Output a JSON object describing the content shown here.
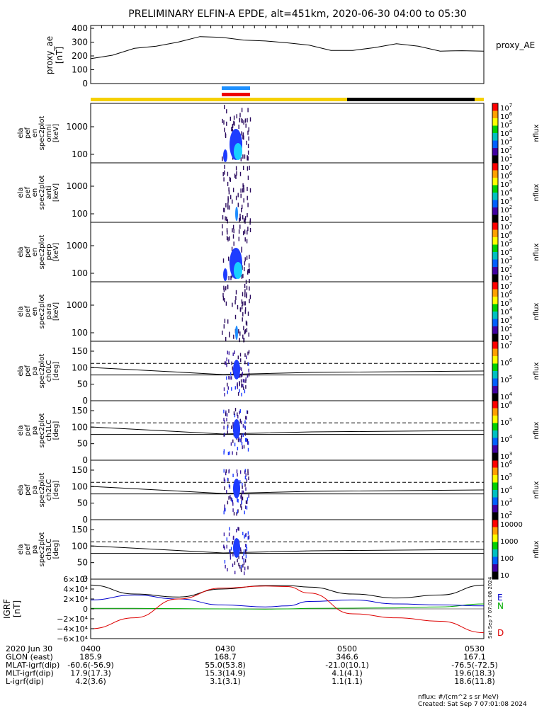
{
  "title": "PRELIMINARY ELFIN-A EPDE, alt=451km, 2020-06-30 04:00 to 05:30",
  "chart_data": [
    {
      "id": "ae",
      "type": "line",
      "ylabel": [
        "proxy_ae",
        "[nT]"
      ],
      "legend": "proxy_AE",
      "yticks": [
        "400",
        "300",
        "200",
        "100",
        "0"
      ],
      "ylim": [
        0,
        400
      ],
      "xlim_min": [
        0,
        90
      ],
      "x": [
        0,
        5,
        10,
        15,
        20,
        25,
        30,
        35,
        40,
        45,
        50,
        55,
        60,
        65,
        70,
        75,
        80,
        85,
        90
      ],
      "values": [
        180,
        205,
        255,
        270,
        300,
        340,
        335,
        315,
        308,
        295,
        278,
        240,
        240,
        260,
        288,
        270,
        235,
        238,
        235
      ]
    },
    {
      "id": "spec_omni",
      "type": "heatmap",
      "ylabel": [
        "ela",
        "pef",
        "en",
        "spec2plot",
        "omni",
        "[keV]"
      ],
      "yticks": [
        "1000",
        "100"
      ],
      "cbar": {
        "label": "nflux",
        "ticks": [
          "10^7",
          "10^6",
          "10^5",
          "10^4",
          "10^3",
          "10^2",
          "10^1"
        ]
      }
    },
    {
      "id": "spec_anti",
      "type": "heatmap",
      "ylabel": [
        "ela",
        "pef",
        "en",
        "spec2plot",
        "anti",
        "[keV]"
      ],
      "yticks": [
        "1000",
        "100"
      ],
      "cbar": {
        "label": "nflux",
        "ticks": [
          "10^7",
          "10^6",
          "10^5",
          "10^4",
          "10^3",
          "10^2",
          "10^1"
        ]
      }
    },
    {
      "id": "spec_perp",
      "type": "heatmap",
      "ylabel": [
        "ela",
        "pef",
        "en",
        "spec2plot",
        "perp",
        "[keV]"
      ],
      "yticks": [
        "1000",
        "100"
      ],
      "cbar": {
        "label": "nflux",
        "ticks": [
          "10^7",
          "10^6",
          "10^5",
          "10^4",
          "10^3",
          "10^2",
          "10^1"
        ]
      }
    },
    {
      "id": "spec_para",
      "type": "heatmap",
      "ylabel": [
        "ela",
        "pef",
        "en",
        "spec2plot",
        "para",
        "[keV]"
      ],
      "yticks": [
        "1000",
        "100"
      ],
      "cbar": {
        "label": "nflux",
        "ticks": [
          "10^7",
          "10^6",
          "10^5",
          "10^4",
          "10^3",
          "10^2",
          "10^1"
        ]
      }
    },
    {
      "id": "pa_ch0",
      "type": "heatmap",
      "ylabel": [
        "ela",
        "pef",
        "pa",
        "spec2plot",
        "ch0LC",
        "[deg]"
      ],
      "yticks": [
        "150",
        "100",
        "50",
        "0"
      ],
      "ylim": [
        0,
        180
      ],
      "cbar": {
        "label": "nflux",
        "ticks": [
          "10^7",
          "10^6",
          "10^5",
          "10^4"
        ]
      }
    },
    {
      "id": "pa_ch1",
      "type": "heatmap",
      "ylabel": [
        "ela",
        "pef",
        "pa",
        "spec2plot",
        "ch1LC",
        "[deg]"
      ],
      "yticks": [
        "150",
        "100",
        "50",
        "0"
      ],
      "ylim": [
        0,
        180
      ],
      "cbar": {
        "label": "nflux",
        "ticks": [
          "10^6",
          "10^5",
          "10^4",
          "10^3"
        ]
      }
    },
    {
      "id": "pa_ch2",
      "type": "heatmap",
      "ylabel": [
        "ela",
        "pef",
        "pa",
        "spec2plot",
        "ch2LC",
        "[deg]"
      ],
      "yticks": [
        "150",
        "100",
        "50",
        "0"
      ],
      "ylim": [
        0,
        180
      ],
      "cbar": {
        "label": "nflux",
        "ticks": [
          "10^6",
          "10^5",
          "10^4",
          "10^3",
          "10^2"
        ]
      }
    },
    {
      "id": "pa_ch3",
      "type": "heatmap",
      "ylabel": [
        "ela",
        "pef",
        "pa",
        "spec2plot",
        "ch3LC",
        "[deg]"
      ],
      "yticks": [
        "150",
        "100",
        "50",
        "0"
      ],
      "ylim": [
        0,
        180
      ],
      "cbar": {
        "label": "nflux",
        "ticks": [
          "10000",
          "1000",
          "100",
          "10"
        ]
      }
    },
    {
      "id": "igrf",
      "type": "line",
      "ylabel": [
        "IGRF",
        "[nT]"
      ],
      "yticks": [
        "6×10⁴",
        "4×10⁴",
        "2×10⁴",
        "0",
        "−2×10⁴",
        "−4×10⁴",
        "−6×10⁴"
      ],
      "ylim": [
        -60000,
        60000
      ],
      "legend": [
        "N",
        "E",
        "D"
      ],
      "x": [
        0,
        10,
        20,
        30,
        40,
        45,
        50,
        60,
        70,
        80,
        90
      ],
      "series": [
        {
          "name": "total",
          "color": "#000000",
          "values": [
            48000,
            30000,
            24000,
            40000,
            47000,
            47000,
            44000,
            30000,
            22000,
            28000,
            48000
          ]
        },
        {
          "name": "N",
          "color": "#00aa00",
          "values": [
            1000,
            1000,
            500,
            0,
            -500,
            0,
            1000,
            1500,
            2000,
            4000,
            10000
          ]
        },
        {
          "name": "E",
          "color": "#0000cc",
          "values": [
            18000,
            28000,
            20000,
            8000,
            4000,
            6000,
            15000,
            18000,
            10000,
            8000,
            6000
          ]
        },
        {
          "name": "D",
          "color": "#dd0000",
          "values": [
            -40000,
            -18000,
            20000,
            42000,
            46000,
            45000,
            32000,
            -10000,
            -18000,
            -25000,
            -48000
          ]
        }
      ]
    }
  ],
  "footer": {
    "rows": [
      {
        "label": "2020 Jun 30",
        "values": [
          "0400",
          "0430",
          "0500",
          "0530"
        ]
      },
      {
        "label": "GLON (east)",
        "values": [
          "185.9",
          "168.7",
          "346.6",
          "167.1"
        ]
      },
      {
        "label": "MLAT-igrf(dip)",
        "values": [
          "-60.6(-56.9)",
          "55.0(53.8)",
          "-21.0(10.1)",
          "-76.5(-72.5)"
        ]
      },
      {
        "label": "MLT-igrf(dip)",
        "values": [
          "17.9(17.3)",
          "15.3(14.9)",
          "4.1(4.1)",
          "19.6(18.3)"
        ]
      },
      {
        "label": "L-igrf(dip)",
        "values": [
          "4.2(3.6)",
          "3.1(3.1)",
          "1.1(1.1)",
          "18.6(11.8)"
        ]
      }
    ],
    "units_note": "nflux: #/(cm^2 s sr MeV)",
    "created": "Created: Sat Sep  7 07:01:08 2024",
    "side_stamp": "Sat Sep  7 07:01:08 2024"
  },
  "colors": {
    "day": "#f5d000",
    "night": "#000000",
    "bar_blue": "#1e90ff",
    "bar_red": "#ee0000"
  }
}
